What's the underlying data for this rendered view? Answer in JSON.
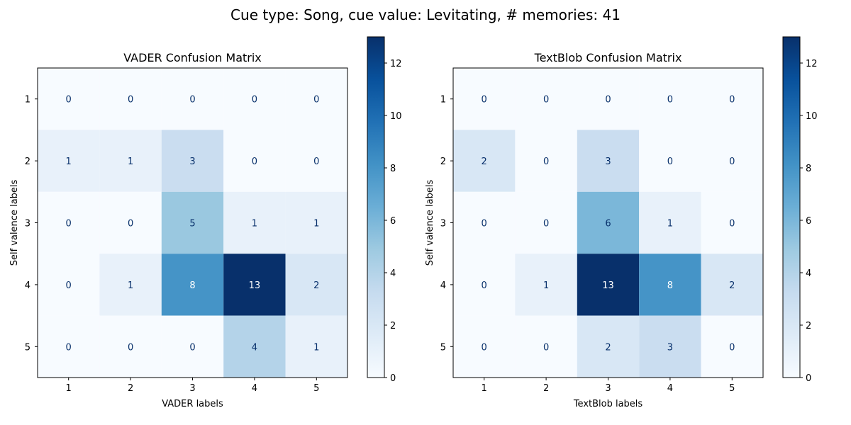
{
  "figure": {
    "suptitle": "Cue type: Song, cue value: Levitating, # memories: 41"
  },
  "chart_data": [
    {
      "type": "heatmap",
      "title": "VADER Confusion Matrix",
      "xlabel": "VADER labels",
      "ylabel": "Self valence labels",
      "x_categories": [
        "1",
        "2",
        "3",
        "4",
        "5"
      ],
      "y_categories": [
        "1",
        "2",
        "3",
        "4",
        "5"
      ],
      "values": [
        [
          0,
          0,
          0,
          0,
          0
        ],
        [
          1,
          1,
          3,
          0,
          0
        ],
        [
          0,
          0,
          5,
          1,
          1
        ],
        [
          0,
          1,
          8,
          13,
          2
        ],
        [
          0,
          0,
          0,
          4,
          1
        ]
      ],
      "colormap": "Blues",
      "colorbar": {
        "range": [
          0,
          13
        ],
        "ticks": [
          "0",
          "2",
          "4",
          "6",
          "8",
          "10",
          "12"
        ]
      },
      "colors": {
        "low": "#f7fbff",
        "high": "#08306b",
        "text_dark": "#08306b",
        "text_light": "#ffffff"
      }
    },
    {
      "type": "heatmap",
      "title": "TextBlob Confusion Matrix",
      "xlabel": "TextBlob labels",
      "ylabel": "Self valence labels",
      "x_categories": [
        "1",
        "2",
        "3",
        "4",
        "5"
      ],
      "y_categories": [
        "1",
        "2",
        "3",
        "4",
        "5"
      ],
      "values": [
        [
          0,
          0,
          0,
          0,
          0
        ],
        [
          2,
          0,
          3,
          0,
          0
        ],
        [
          0,
          0,
          6,
          1,
          0
        ],
        [
          0,
          1,
          13,
          8,
          2
        ],
        [
          0,
          0,
          2,
          3,
          0
        ]
      ],
      "colormap": "Blues",
      "colorbar": {
        "range": [
          0,
          13
        ],
        "ticks": [
          "0",
          "2",
          "4",
          "6",
          "8",
          "10",
          "12"
        ]
      },
      "colors": {
        "low": "#f7fbff",
        "high": "#08306b",
        "text_dark": "#08306b",
        "text_light": "#ffffff"
      }
    }
  ]
}
